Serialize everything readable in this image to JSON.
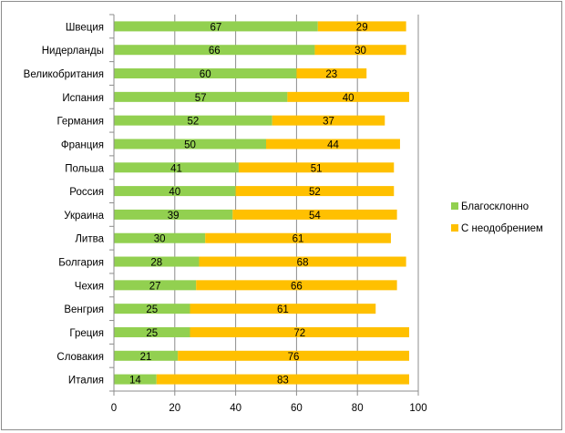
{
  "chart_data": {
    "type": "bar",
    "orientation": "horizontal",
    "stacked": true,
    "categories": [
      "Швеция",
      "Нидерланды",
      "Великобритания",
      "Испания",
      "Германия",
      "Франция",
      "Польша",
      "Россия",
      "Украина",
      "Литва",
      "Болгария",
      "Чехия",
      "Венгрия",
      "Греция",
      "Словакия",
      "Италия"
    ],
    "series": [
      {
        "name": "Благосклонно",
        "color": "#92d050",
        "values": [
          67,
          66,
          60,
          57,
          52,
          50,
          41,
          40,
          39,
          30,
          28,
          27,
          25,
          25,
          21,
          14
        ]
      },
      {
        "name": "С неодобрением",
        "color": "#ffc000",
        "values": [
          29,
          30,
          23,
          40,
          37,
          44,
          51,
          52,
          54,
          61,
          68,
          66,
          61,
          72,
          76,
          83
        ]
      }
    ],
    "xlim": [
      0,
      100
    ],
    "xticks": [
      0,
      20,
      40,
      60,
      80,
      100
    ],
    "grid": "vertical major gridlines",
    "legend": "right",
    "data_labels": true
  }
}
